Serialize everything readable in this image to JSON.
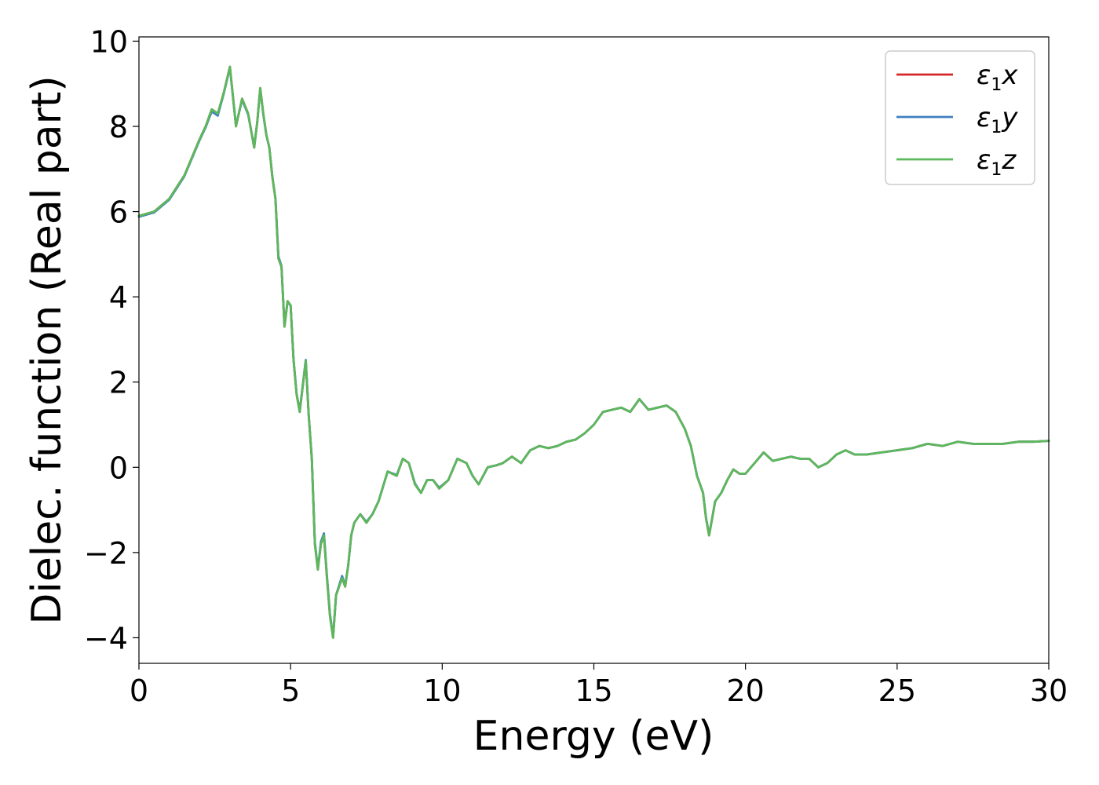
{
  "chart_data": {
    "type": "line",
    "title": "",
    "xlabel": "Energy (eV)",
    "ylabel": "Dielec. function (Real part)",
    "xlim": [
      0,
      30
    ],
    "ylim": [
      -4.6,
      10.1
    ],
    "xticks": [
      0,
      5,
      10,
      15,
      20,
      25,
      30
    ],
    "yticks": [
      -4,
      -2,
      0,
      2,
      4,
      6,
      8,
      10
    ],
    "xtick_labels": [
      "0",
      "5",
      "10",
      "15",
      "20",
      "25",
      "30"
    ],
    "ytick_labels": [
      "−4",
      "−2",
      "0",
      "2",
      "4",
      "6",
      "8",
      "10"
    ],
    "grid": false,
    "legend_position": "top-right",
    "series": [
      {
        "name": "ε₁x",
        "legend_main": "ε",
        "legend_sub": "1",
        "legend_var": "x",
        "color": "#d62728",
        "x": [
          0,
          0.5,
          1,
          1.5,
          2,
          2.2,
          2.4,
          2.6,
          2.8,
          3.0,
          3.2,
          3.4,
          3.6,
          3.8,
          3.9,
          4.0,
          4.1,
          4.2,
          4.3,
          4.4,
          4.5,
          4.6,
          4.7,
          4.8,
          4.9,
          5.0,
          5.1,
          5.2,
          5.3,
          5.5,
          5.6,
          5.7,
          5.8,
          5.9,
          6.0,
          6.1,
          6.2,
          6.3,
          6.4,
          6.5,
          6.7,
          6.8,
          6.9,
          7.0,
          7.1,
          7.3,
          7.5,
          7.7,
          7.9,
          8.2,
          8.5,
          8.7,
          8.9,
          9.1,
          9.3,
          9.5,
          9.7,
          9.9,
          10.2,
          10.5,
          10.8,
          11.0,
          11.2,
          11.5,
          11.8,
          12.0,
          12.3,
          12.6,
          12.9,
          13.2,
          13.5,
          13.8,
          14.1,
          14.4,
          14.7,
          15.0,
          15.3,
          15.6,
          15.9,
          16.2,
          16.5,
          16.8,
          17.1,
          17.4,
          17.7,
          18.0,
          18.2,
          18.4,
          18.6,
          18.7,
          18.8,
          18.9,
          19.0,
          19.2,
          19.4,
          19.6,
          19.8,
          20.0,
          20.3,
          20.6,
          20.9,
          21.2,
          21.5,
          21.8,
          22.1,
          22.4,
          22.7,
          23.0,
          23.3,
          23.6,
          24.0,
          24.5,
          25.0,
          25.5,
          26.0,
          26.5,
          27.0,
          27.5,
          28.0,
          28.5,
          29.0,
          29.5,
          30.0
        ],
        "y": [
          5.9,
          6.0,
          6.3,
          6.85,
          7.7,
          8.0,
          8.4,
          8.3,
          8.8,
          9.4,
          8.0,
          8.65,
          8.3,
          7.5,
          8.1,
          8.9,
          8.3,
          7.8,
          7.5,
          6.8,
          6.3,
          4.9,
          4.7,
          3.3,
          3.9,
          3.8,
          2.5,
          1.7,
          1.3,
          2.5,
          1.2,
          0.2,
          -1.8,
          -2.4,
          -1.8,
          -1.6,
          -2.6,
          -3.5,
          -4.0,
          -3.0,
          -2.6,
          -2.8,
          -2.3,
          -1.6,
          -1.3,
          -1.1,
          -1.3,
          -1.1,
          -0.8,
          -0.1,
          -0.2,
          0.2,
          0.1,
          -0.4,
          -0.6,
          -0.3,
          -0.3,
          -0.5,
          -0.3,
          0.2,
          0.1,
          -0.2,
          -0.4,
          0.0,
          0.05,
          0.1,
          0.25,
          0.1,
          0.4,
          0.5,
          0.45,
          0.5,
          0.6,
          0.65,
          0.8,
          1.0,
          1.3,
          1.35,
          1.4,
          1.3,
          1.6,
          1.35,
          1.4,
          1.45,
          1.3,
          0.9,
          0.5,
          -0.2,
          -0.6,
          -1.2,
          -1.6,
          -1.2,
          -0.8,
          -0.6,
          -0.3,
          -0.05,
          -0.15,
          -0.15,
          0.1,
          0.35,
          0.15,
          0.2,
          0.25,
          0.2,
          0.2,
          0.0,
          0.1,
          0.3,
          0.4,
          0.3,
          0.3,
          0.35,
          0.4,
          0.45,
          0.55,
          0.5,
          0.6,
          0.55,
          0.55,
          0.55,
          0.6,
          0.6,
          0.62
        ]
      },
      {
        "name": "ε₁y",
        "legend_main": "ε",
        "legend_sub": "1",
        "legend_var": "y",
        "color": "#3f7fbf",
        "x": [
          0,
          0.5,
          1,
          1.5,
          2,
          2.2,
          2.4,
          2.6,
          2.8,
          3.0,
          3.2,
          3.4,
          3.6,
          3.8,
          3.9,
          4.0,
          4.1,
          4.2,
          4.3,
          4.4,
          4.5,
          4.6,
          4.7,
          4.8,
          4.9,
          5.0,
          5.1,
          5.2,
          5.3,
          5.5,
          5.6,
          5.7,
          5.8,
          5.9,
          6.0,
          6.1,
          6.2,
          6.3,
          6.4,
          6.5,
          6.7,
          6.8,
          6.9,
          7.0,
          7.1,
          7.3,
          7.5,
          7.7,
          7.9,
          8.2,
          8.5,
          8.7,
          8.9,
          9.1,
          9.3,
          9.5,
          9.7,
          9.9,
          10.2,
          10.5,
          10.8,
          11.0,
          11.2,
          11.5,
          11.8,
          12.0,
          12.3,
          12.6,
          12.9,
          13.2,
          13.5,
          13.8,
          14.1,
          14.4,
          14.7,
          15.0,
          15.3,
          15.6,
          15.9,
          16.2,
          16.5,
          16.8,
          17.1,
          17.4,
          17.7,
          18.0,
          18.2,
          18.4,
          18.6,
          18.7,
          18.8,
          18.9,
          19.0,
          19.2,
          19.4,
          19.6,
          19.8,
          20.0,
          20.3,
          20.6,
          20.9,
          21.2,
          21.5,
          21.8,
          22.1,
          22.4,
          22.7,
          23.0,
          23.3,
          23.6,
          24.0,
          24.5,
          25.0,
          25.5,
          26.0,
          26.5,
          27.0,
          27.5,
          28.0,
          28.5,
          29.0,
          29.5,
          30.0
        ],
        "y": [
          5.88,
          5.98,
          6.28,
          6.83,
          7.68,
          7.98,
          8.35,
          8.25,
          8.78,
          9.38,
          8.02,
          8.62,
          8.28,
          7.52,
          8.1,
          8.88,
          8.28,
          7.8,
          7.5,
          6.82,
          6.3,
          4.95,
          4.72,
          3.32,
          3.88,
          3.8,
          2.52,
          1.72,
          1.32,
          2.52,
          1.22,
          0.22,
          -1.75,
          -2.38,
          -1.75,
          -1.55,
          -2.55,
          -3.45,
          -3.98,
          -3.0,
          -2.55,
          -2.78,
          -2.3,
          -1.6,
          -1.3,
          -1.1,
          -1.28,
          -1.1,
          -0.8,
          -0.1,
          -0.18,
          0.2,
          0.1,
          -0.38,
          -0.6,
          -0.3,
          -0.3,
          -0.48,
          -0.3,
          0.2,
          0.1,
          -0.2,
          -0.4,
          0.0,
          0.05,
          0.1,
          0.25,
          0.1,
          0.4,
          0.5,
          0.45,
          0.5,
          0.6,
          0.65,
          0.8,
          1.0,
          1.3,
          1.35,
          1.4,
          1.3,
          1.6,
          1.35,
          1.4,
          1.45,
          1.3,
          0.9,
          0.5,
          -0.2,
          -0.6,
          -1.18,
          -1.58,
          -1.2,
          -0.8,
          -0.6,
          -0.3,
          -0.05,
          -0.15,
          -0.15,
          0.1,
          0.35,
          0.15,
          0.2,
          0.25,
          0.2,
          0.2,
          0.0,
          0.1,
          0.3,
          0.4,
          0.3,
          0.3,
          0.35,
          0.4,
          0.45,
          0.55,
          0.5,
          0.6,
          0.55,
          0.55,
          0.55,
          0.6,
          0.6,
          0.62
        ]
      },
      {
        "name": "ε₁z",
        "legend_main": "ε",
        "legend_sub": "1",
        "legend_var": "z",
        "color": "#5cb85c",
        "x": [
          0,
          0.5,
          1,
          1.5,
          2,
          2.2,
          2.4,
          2.6,
          2.8,
          3.0,
          3.2,
          3.4,
          3.6,
          3.8,
          3.9,
          4.0,
          4.1,
          4.2,
          4.3,
          4.4,
          4.5,
          4.6,
          4.7,
          4.8,
          4.9,
          5.0,
          5.1,
          5.2,
          5.3,
          5.5,
          5.6,
          5.7,
          5.8,
          5.9,
          6.0,
          6.1,
          6.2,
          6.3,
          6.4,
          6.5,
          6.7,
          6.8,
          6.9,
          7.0,
          7.1,
          7.3,
          7.5,
          7.7,
          7.9,
          8.2,
          8.5,
          8.7,
          8.9,
          9.1,
          9.3,
          9.5,
          9.7,
          9.9,
          10.2,
          10.5,
          10.8,
          11.0,
          11.2,
          11.5,
          11.8,
          12.0,
          12.3,
          12.6,
          12.9,
          13.2,
          13.5,
          13.8,
          14.1,
          14.4,
          14.7,
          15.0,
          15.3,
          15.6,
          15.9,
          16.2,
          16.5,
          16.8,
          17.1,
          17.4,
          17.7,
          18.0,
          18.2,
          18.4,
          18.6,
          18.7,
          18.8,
          18.9,
          19.0,
          19.2,
          19.4,
          19.6,
          19.8,
          20.0,
          20.3,
          20.6,
          20.9,
          21.2,
          21.5,
          21.8,
          22.1,
          22.4,
          22.7,
          23.0,
          23.3,
          23.6,
          24.0,
          24.5,
          25.0,
          25.5,
          26.0,
          26.5,
          27.0,
          27.5,
          28.0,
          28.5,
          29.0,
          29.5,
          30.0
        ],
        "y": [
          5.9,
          6.0,
          6.3,
          6.85,
          7.7,
          8.0,
          8.4,
          8.3,
          8.8,
          9.4,
          8.0,
          8.65,
          8.3,
          7.5,
          8.1,
          8.9,
          8.3,
          7.8,
          7.5,
          6.8,
          6.3,
          4.9,
          4.7,
          3.3,
          3.9,
          3.8,
          2.5,
          1.7,
          1.3,
          2.5,
          1.2,
          0.2,
          -1.8,
          -2.4,
          -1.8,
          -1.6,
          -2.6,
          -3.5,
          -4.0,
          -3.0,
          -2.6,
          -2.8,
          -2.3,
          -1.6,
          -1.3,
          -1.1,
          -1.3,
          -1.1,
          -0.8,
          -0.1,
          -0.2,
          0.2,
          0.1,
          -0.4,
          -0.6,
          -0.3,
          -0.3,
          -0.5,
          -0.3,
          0.2,
          0.1,
          -0.2,
          -0.4,
          0.0,
          0.05,
          0.1,
          0.25,
          0.1,
          0.4,
          0.5,
          0.45,
          0.5,
          0.6,
          0.65,
          0.8,
          1.0,
          1.3,
          1.35,
          1.4,
          1.3,
          1.6,
          1.35,
          1.4,
          1.45,
          1.3,
          0.9,
          0.5,
          -0.2,
          -0.6,
          -1.2,
          -1.6,
          -1.2,
          -0.8,
          -0.6,
          -0.3,
          -0.05,
          -0.15,
          -0.15,
          0.1,
          0.35,
          0.15,
          0.2,
          0.25,
          0.2,
          0.2,
          0.0,
          0.1,
          0.3,
          0.4,
          0.3,
          0.3,
          0.35,
          0.4,
          0.45,
          0.55,
          0.5,
          0.6,
          0.55,
          0.55,
          0.55,
          0.6,
          0.6,
          0.62
        ]
      }
    ]
  }
}
